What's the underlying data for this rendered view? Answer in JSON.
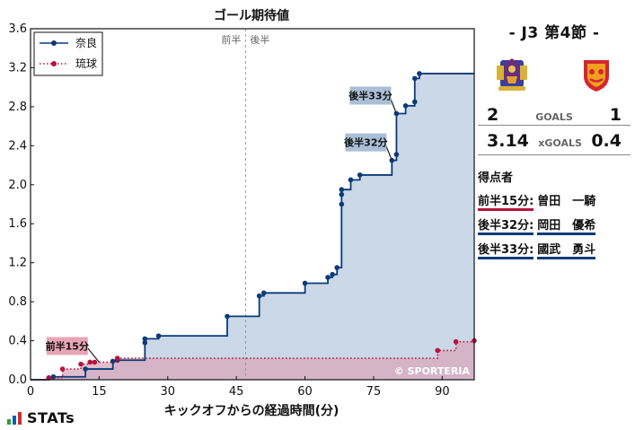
{
  "chart_data": {
    "type": "line",
    "title": "ゴール期待値",
    "xlabel": "キックオフからの経過時間(分)",
    "ylabel": "",
    "xlim": [
      0,
      97
    ],
    "ylim": [
      0,
      3.6
    ],
    "x_ticks": [
      0,
      15,
      30,
      45,
      60,
      75,
      90
    ],
    "y_ticks": [
      0.0,
      0.4,
      0.8,
      1.2,
      1.6,
      2.0,
      2.4,
      2.8,
      3.2,
      3.6
    ],
    "y_tick_labels": [
      "0.0",
      "0.4",
      "0.8",
      "1.2",
      "1.6",
      "2.0",
      "2.4",
      "2.8",
      "3.2",
      "3.6"
    ],
    "half_divider_x": 47,
    "half_labels": [
      "前半",
      "後半"
    ],
    "legend_position": "top-left",
    "watermark": "© SPORTERIA",
    "series": [
      {
        "name": "奈良",
        "color": "#0b3b78",
        "fill": "#c8d6e6",
        "style": "solid",
        "points": [
          [
            4,
            0.02
          ],
          [
            5,
            0.03
          ],
          [
            12,
            0.11
          ],
          [
            18,
            0.19
          ],
          [
            19,
            0.2
          ],
          [
            25,
            0.38
          ],
          [
            25,
            0.42
          ],
          [
            28,
            0.45
          ],
          [
            43,
            0.65
          ],
          [
            50,
            0.86
          ],
          [
            51,
            0.89
          ],
          [
            60,
            0.99
          ],
          [
            65,
            1.05
          ],
          [
            66,
            1.08
          ],
          [
            67,
            1.15
          ],
          [
            68,
            1.8
          ],
          [
            68,
            1.9
          ],
          [
            68,
            1.95
          ],
          [
            70,
            2.05
          ],
          [
            72,
            2.1
          ],
          [
            79,
            2.25
          ],
          [
            80,
            2.31
          ],
          [
            80,
            2.73
          ],
          [
            82,
            2.81
          ],
          [
            84,
            2.85
          ],
          [
            84,
            3.09
          ],
          [
            85,
            3.14
          ]
        ],
        "end_x": 97,
        "end_value": 3.14
      },
      {
        "name": "琉球",
        "color": "#b7143c",
        "fill": "#d8a8bc",
        "style": "dotted",
        "points": [
          [
            4,
            0.02
          ],
          [
            7,
            0.11
          ],
          [
            11,
            0.16
          ],
          [
            13,
            0.18
          ],
          [
            14,
            0.18
          ],
          [
            19,
            0.22
          ],
          [
            89,
            0.3
          ],
          [
            93,
            0.39
          ],
          [
            97,
            0.4
          ]
        ],
        "end_x": 97,
        "end_value": 0.4
      }
    ],
    "annotations": [
      {
        "text": "前半15分",
        "x": 15,
        "y": 0.18,
        "team": "琉球"
      },
      {
        "text": "後半32分",
        "x": 79,
        "y": 2.25,
        "team": "奈良"
      },
      {
        "text": "後半33分",
        "x": 80,
        "y": 2.73,
        "team": "奈良"
      }
    ]
  },
  "panel": {
    "match_title": "- J3 第4節 -",
    "home_goals": "2",
    "away_goals": "1",
    "goals_label": "GOALS",
    "home_xg": "3.14",
    "away_xg": "0.4",
    "xg_label": "xGOALS",
    "scorers_heading": "得点者",
    "scorers": [
      {
        "time": "前半15分:",
        "name": "曽田　一騎",
        "team": "ryukyu"
      },
      {
        "time": "後半32分:",
        "name": "岡田　優希",
        "team": "nara"
      },
      {
        "time": "後半33分:",
        "name": "國武　勇斗",
        "team": "nara"
      }
    ],
    "home_crest": "nara-crest-icon",
    "away_crest": "ryukyu-crest-icon"
  },
  "brand": {
    "text": "STATs"
  },
  "colors": {
    "nara": "#0b3b78",
    "ryukyu": "#b7143c"
  }
}
